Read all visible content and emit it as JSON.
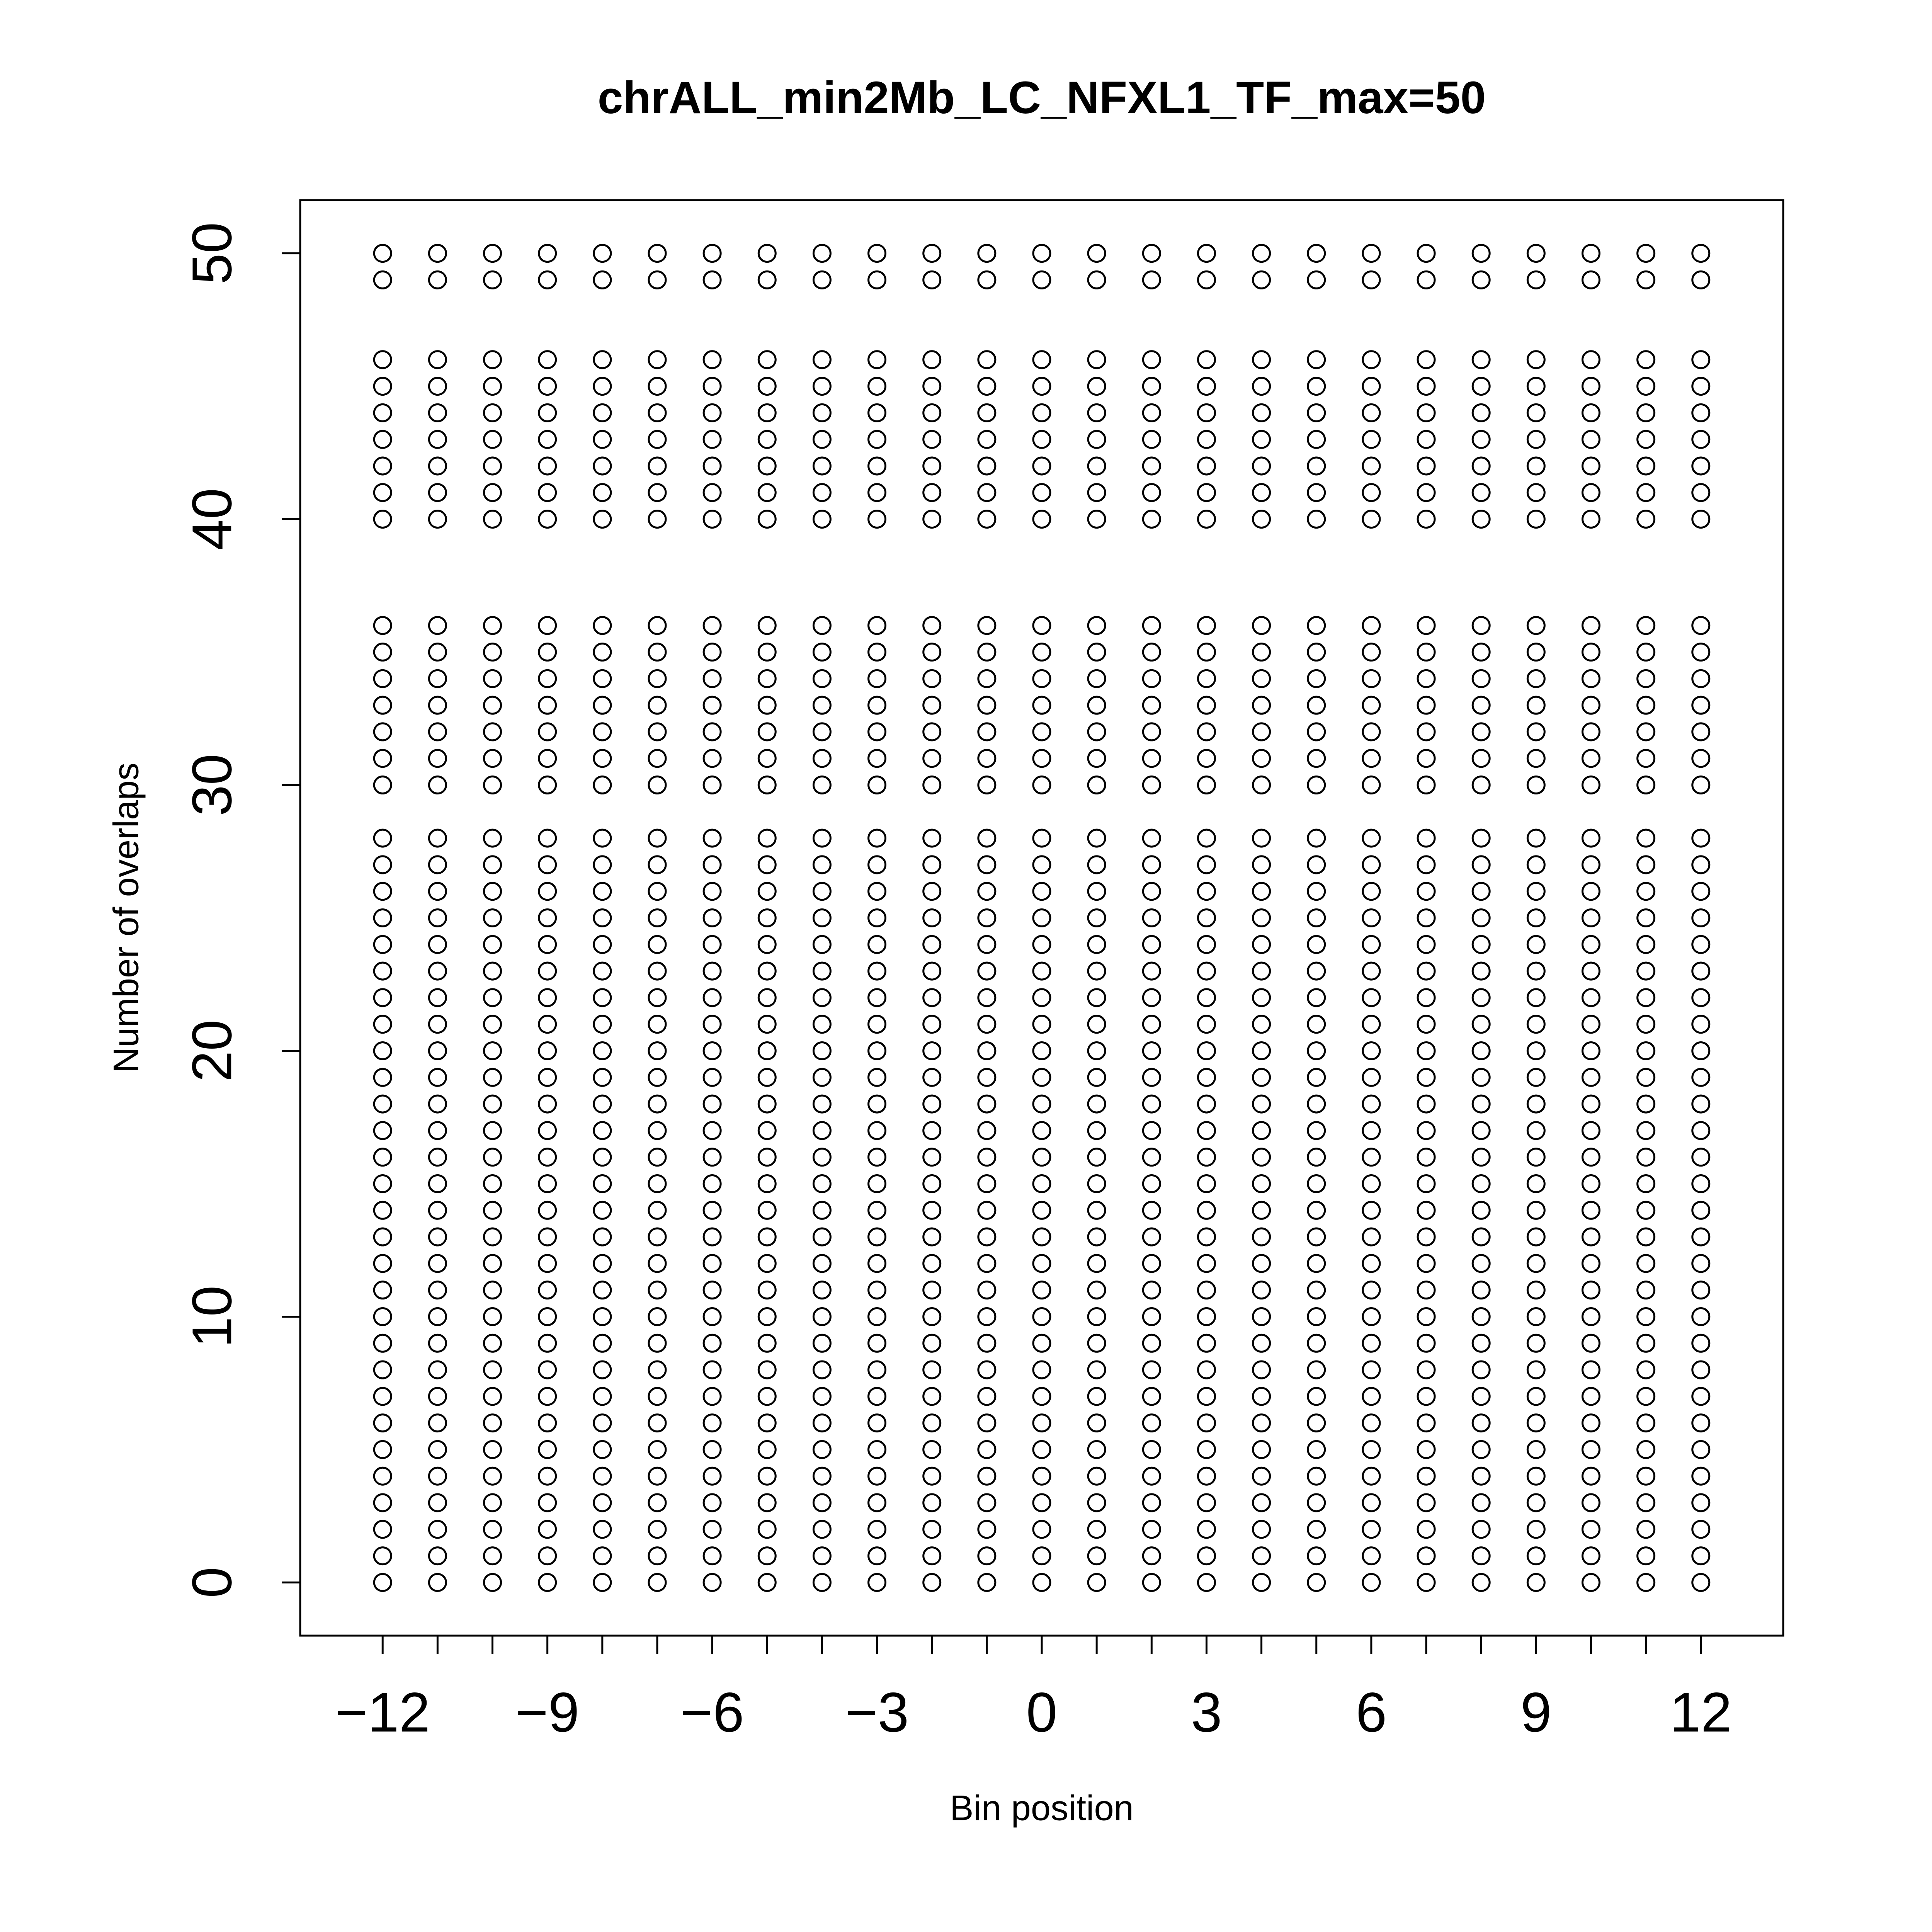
{
  "chart_data": {
    "type": "scatter",
    "title": "chrALL_min2Mb_LC_NFXL1_TF_max=50",
    "xlabel": "Bin position",
    "ylabel": "Number of overlaps",
    "xlim": [
      -13.5,
      13.5
    ],
    "ylim": [
      -2,
      52
    ],
    "xticks": [
      {
        "value": -12,
        "label": "−12"
      },
      {
        "value": -9,
        "label": "−9"
      },
      {
        "value": -6,
        "label": "−6"
      },
      {
        "value": -3,
        "label": "−3"
      },
      0,
      3,
      6,
      9,
      12
    ],
    "xtick_marks": [
      -12,
      -11,
      -10,
      -9,
      -8,
      -7,
      -6,
      -5,
      -4,
      -3,
      -2,
      -1,
      0,
      1,
      2,
      3,
      4,
      5,
      6,
      7,
      8,
      9,
      10,
      11,
      12
    ],
    "yticks": [
      0,
      10,
      20,
      30,
      40,
      50
    ],
    "color": "#000000",
    "series": [
      {
        "x": -12,
        "values": [
          0,
          1,
          2,
          3,
          4,
          5,
          6,
          7,
          8,
          9,
          10,
          11,
          12,
          13,
          14,
          15,
          16,
          17,
          18,
          19,
          20,
          21,
          22,
          23,
          24,
          25,
          26,
          27,
          28,
          30,
          31,
          32,
          33,
          34,
          35,
          36,
          40,
          41,
          42,
          43,
          44,
          45,
          46,
          49,
          50
        ]
      },
      {
        "x": -11,
        "values": [
          0,
          1,
          2,
          3,
          4,
          5,
          6,
          7,
          8,
          9,
          10,
          11,
          12,
          13,
          14,
          15,
          16,
          17,
          18,
          19,
          20,
          21,
          22,
          23,
          24,
          25,
          26,
          27,
          28,
          30,
          31,
          32,
          33,
          34,
          35,
          36,
          40,
          41,
          42,
          43,
          44,
          45,
          46,
          49,
          50
        ]
      },
      {
        "x": -10,
        "values": [
          0,
          1,
          2,
          3,
          4,
          5,
          6,
          7,
          8,
          9,
          10,
          11,
          12,
          13,
          14,
          15,
          16,
          17,
          18,
          19,
          20,
          21,
          22,
          23,
          24,
          25,
          26,
          27,
          28,
          30,
          31,
          32,
          33,
          34,
          35,
          36,
          40,
          41,
          42,
          43,
          44,
          45,
          46,
          49,
          50
        ]
      },
      {
        "x": -9,
        "values": [
          0,
          1,
          2,
          3,
          4,
          5,
          6,
          7,
          8,
          9,
          10,
          11,
          12,
          13,
          14,
          15,
          16,
          17,
          18,
          19,
          20,
          21,
          22,
          23,
          24,
          25,
          26,
          27,
          28,
          30,
          31,
          32,
          33,
          34,
          35,
          36,
          40,
          41,
          42,
          43,
          44,
          45,
          46,
          49,
          50
        ]
      },
      {
        "x": -8,
        "values": [
          0,
          1,
          2,
          3,
          4,
          5,
          6,
          7,
          8,
          9,
          10,
          11,
          12,
          13,
          14,
          15,
          16,
          17,
          18,
          19,
          20,
          21,
          22,
          23,
          24,
          25,
          26,
          27,
          28,
          30,
          31,
          32,
          33,
          34,
          35,
          36,
          40,
          41,
          42,
          43,
          44,
          45,
          46,
          49,
          50
        ]
      },
      {
        "x": -7,
        "values": [
          0,
          1,
          2,
          3,
          4,
          5,
          6,
          7,
          8,
          9,
          10,
          11,
          12,
          13,
          14,
          15,
          16,
          17,
          18,
          19,
          20,
          21,
          22,
          23,
          24,
          25,
          26,
          27,
          28,
          30,
          31,
          32,
          33,
          34,
          35,
          36,
          40,
          41,
          42,
          43,
          44,
          45,
          46,
          49,
          50
        ]
      },
      {
        "x": -6,
        "values": [
          0,
          1,
          2,
          3,
          4,
          5,
          6,
          7,
          8,
          9,
          10,
          11,
          12,
          13,
          14,
          15,
          16,
          17,
          18,
          19,
          20,
          21,
          22,
          23,
          24,
          25,
          26,
          27,
          28,
          30,
          31,
          32,
          33,
          34,
          35,
          36,
          40,
          41,
          42,
          43,
          44,
          45,
          46,
          49,
          50
        ]
      },
      {
        "x": -5,
        "values": [
          0,
          1,
          2,
          3,
          4,
          5,
          6,
          7,
          8,
          9,
          10,
          11,
          12,
          13,
          14,
          15,
          16,
          17,
          18,
          19,
          20,
          21,
          22,
          23,
          24,
          25,
          26,
          27,
          28,
          30,
          31,
          32,
          33,
          34,
          35,
          36,
          40,
          41,
          42,
          43,
          44,
          45,
          46,
          49,
          50
        ]
      },
      {
        "x": -4,
        "values": [
          0,
          1,
          2,
          3,
          4,
          5,
          6,
          7,
          8,
          9,
          10,
          11,
          12,
          13,
          14,
          15,
          16,
          17,
          18,
          19,
          20,
          21,
          22,
          23,
          24,
          25,
          26,
          27,
          28,
          30,
          31,
          32,
          33,
          34,
          35,
          36,
          40,
          41,
          42,
          43,
          44,
          45,
          46,
          49,
          50
        ]
      },
      {
        "x": -3,
        "values": [
          0,
          1,
          2,
          3,
          4,
          5,
          6,
          7,
          8,
          9,
          10,
          11,
          12,
          13,
          14,
          15,
          16,
          17,
          18,
          19,
          20,
          21,
          22,
          23,
          24,
          25,
          26,
          27,
          28,
          30,
          31,
          32,
          33,
          34,
          35,
          36,
          40,
          41,
          42,
          43,
          44,
          45,
          46,
          49,
          50
        ]
      },
      {
        "x": -2,
        "values": [
          0,
          1,
          2,
          3,
          4,
          5,
          6,
          7,
          8,
          9,
          10,
          11,
          12,
          13,
          14,
          15,
          16,
          17,
          18,
          19,
          20,
          21,
          22,
          23,
          24,
          25,
          26,
          27,
          28,
          30,
          31,
          32,
          33,
          34,
          35,
          36,
          40,
          41,
          42,
          43,
          44,
          45,
          46,
          49,
          50
        ]
      },
      {
        "x": -1,
        "values": [
          0,
          1,
          2,
          3,
          4,
          5,
          6,
          7,
          8,
          9,
          10,
          11,
          12,
          13,
          14,
          15,
          16,
          17,
          18,
          19,
          20,
          21,
          22,
          23,
          24,
          25,
          26,
          27,
          28,
          30,
          31,
          32,
          33,
          34,
          35,
          36,
          40,
          41,
          42,
          43,
          44,
          45,
          46,
          49,
          50
        ]
      },
      {
        "x": 0,
        "values": [
          0,
          1,
          2,
          3,
          4,
          5,
          6,
          7,
          8,
          9,
          10,
          11,
          12,
          13,
          14,
          15,
          16,
          17,
          18,
          19,
          20,
          21,
          22,
          23,
          24,
          25,
          26,
          27,
          28,
          30,
          31,
          32,
          33,
          34,
          35,
          36,
          40,
          41,
          42,
          43,
          44,
          45,
          46,
          49,
          50
        ]
      },
      {
        "x": 1,
        "values": [
          0,
          1,
          2,
          3,
          4,
          5,
          6,
          7,
          8,
          9,
          10,
          11,
          12,
          13,
          14,
          15,
          16,
          17,
          18,
          19,
          20,
          21,
          22,
          23,
          24,
          25,
          26,
          27,
          28,
          30,
          31,
          32,
          33,
          34,
          35,
          36,
          40,
          41,
          42,
          43,
          44,
          45,
          46,
          49,
          50
        ]
      },
      {
        "x": 2,
        "values": [
          0,
          1,
          2,
          3,
          4,
          5,
          6,
          7,
          8,
          9,
          10,
          11,
          12,
          13,
          14,
          15,
          16,
          17,
          18,
          19,
          20,
          21,
          22,
          23,
          24,
          25,
          26,
          27,
          28,
          30,
          31,
          32,
          33,
          34,
          35,
          36,
          40,
          41,
          42,
          43,
          44,
          45,
          46,
          49,
          50
        ]
      },
      {
        "x": 3,
        "values": [
          0,
          1,
          2,
          3,
          4,
          5,
          6,
          7,
          8,
          9,
          10,
          11,
          12,
          13,
          14,
          15,
          16,
          17,
          18,
          19,
          20,
          21,
          22,
          23,
          24,
          25,
          26,
          27,
          28,
          30,
          31,
          32,
          33,
          34,
          35,
          36,
          40,
          41,
          42,
          43,
          44,
          45,
          46,
          49,
          50
        ]
      },
      {
        "x": 4,
        "values": [
          0,
          1,
          2,
          3,
          4,
          5,
          6,
          7,
          8,
          9,
          10,
          11,
          12,
          13,
          14,
          15,
          16,
          17,
          18,
          19,
          20,
          21,
          22,
          23,
          24,
          25,
          26,
          27,
          28,
          30,
          31,
          32,
          33,
          34,
          35,
          36,
          40,
          41,
          42,
          43,
          44,
          45,
          46,
          49,
          50
        ]
      },
      {
        "x": 5,
        "values": [
          0,
          1,
          2,
          3,
          4,
          5,
          6,
          7,
          8,
          9,
          10,
          11,
          12,
          13,
          14,
          15,
          16,
          17,
          18,
          19,
          20,
          21,
          22,
          23,
          24,
          25,
          26,
          27,
          28,
          30,
          31,
          32,
          33,
          34,
          35,
          36,
          40,
          41,
          42,
          43,
          44,
          45,
          46,
          49,
          50
        ]
      },
      {
        "x": 6,
        "values": [
          0,
          1,
          2,
          3,
          4,
          5,
          6,
          7,
          8,
          9,
          10,
          11,
          12,
          13,
          14,
          15,
          16,
          17,
          18,
          19,
          20,
          21,
          22,
          23,
          24,
          25,
          26,
          27,
          28,
          30,
          31,
          32,
          33,
          34,
          35,
          36,
          40,
          41,
          42,
          43,
          44,
          45,
          46,
          49,
          50
        ]
      },
      {
        "x": 7,
        "values": [
          0,
          1,
          2,
          3,
          4,
          5,
          6,
          7,
          8,
          9,
          10,
          11,
          12,
          13,
          14,
          15,
          16,
          17,
          18,
          19,
          20,
          21,
          22,
          23,
          24,
          25,
          26,
          27,
          28,
          30,
          31,
          32,
          33,
          34,
          35,
          36,
          40,
          41,
          42,
          43,
          44,
          45,
          46,
          49,
          50
        ]
      },
      {
        "x": 8,
        "values": [
          0,
          1,
          2,
          3,
          4,
          5,
          6,
          7,
          8,
          9,
          10,
          11,
          12,
          13,
          14,
          15,
          16,
          17,
          18,
          19,
          20,
          21,
          22,
          23,
          24,
          25,
          26,
          27,
          28,
          30,
          31,
          32,
          33,
          34,
          35,
          36,
          40,
          41,
          42,
          43,
          44,
          45,
          46,
          49,
          50
        ]
      },
      {
        "x": 9,
        "values": [
          0,
          1,
          2,
          3,
          4,
          5,
          6,
          7,
          8,
          9,
          10,
          11,
          12,
          13,
          14,
          15,
          16,
          17,
          18,
          19,
          20,
          21,
          22,
          23,
          24,
          25,
          26,
          27,
          28,
          30,
          31,
          32,
          33,
          34,
          35,
          36,
          40,
          41,
          42,
          43,
          44,
          45,
          46,
          49,
          50
        ]
      },
      {
        "x": 10,
        "values": [
          0,
          1,
          2,
          3,
          4,
          5,
          6,
          7,
          8,
          9,
          10,
          11,
          12,
          13,
          14,
          15,
          16,
          17,
          18,
          19,
          20,
          21,
          22,
          23,
          24,
          25,
          26,
          27,
          28,
          30,
          31,
          32,
          33,
          34,
          35,
          36,
          40,
          41,
          42,
          43,
          44,
          45,
          46,
          49,
          50
        ]
      },
      {
        "x": 11,
        "values": [
          0,
          1,
          2,
          3,
          4,
          5,
          6,
          7,
          8,
          9,
          10,
          11,
          12,
          13,
          14,
          15,
          16,
          17,
          18,
          19,
          20,
          21,
          22,
          23,
          24,
          25,
          26,
          27,
          28,
          30,
          31,
          32,
          33,
          34,
          35,
          36,
          40,
          41,
          42,
          43,
          44,
          45,
          46,
          49,
          50
        ]
      },
      {
        "x": 12,
        "values": [
          0,
          1,
          2,
          3,
          4,
          5,
          6,
          7,
          8,
          9,
          10,
          11,
          12,
          13,
          14,
          15,
          16,
          17,
          18,
          19,
          20,
          21,
          22,
          23,
          24,
          25,
          26,
          27,
          28,
          30,
          31,
          32,
          33,
          34,
          35,
          36,
          40,
          41,
          42,
          43,
          44,
          45,
          46,
          49,
          50
        ]
      }
    ]
  }
}
